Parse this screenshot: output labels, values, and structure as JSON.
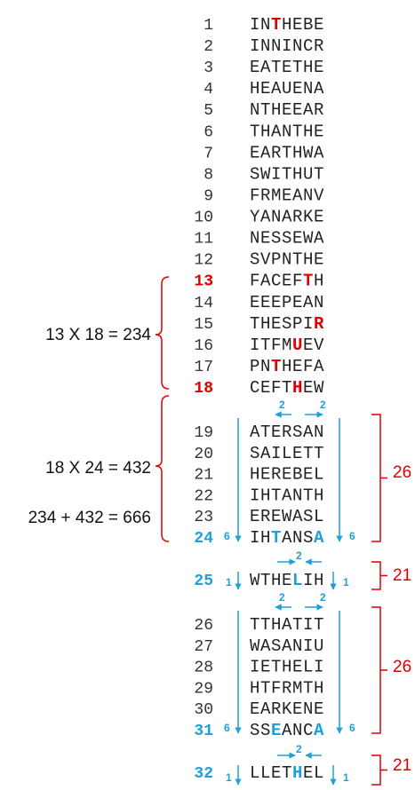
{
  "rows": [
    {
      "number": "1",
      "parts": [
        {
          "text": "IN"
        },
        {
          "text": "T",
          "color": "#e00000"
        },
        {
          "text": "HEBE"
        }
      ]
    },
    {
      "number": "2",
      "parts": [
        {
          "text": "INNINCR"
        }
      ]
    },
    {
      "number": "3",
      "parts": [
        {
          "text": "EATETHE"
        }
      ]
    },
    {
      "number": "4",
      "parts": [
        {
          "text": "HEAUENA"
        }
      ]
    },
    {
      "number": "5",
      "parts": [
        {
          "text": "NTHEEAR"
        }
      ]
    },
    {
      "number": "6",
      "parts": [
        {
          "text": "THANTHE"
        }
      ]
    },
    {
      "number": "7",
      "parts": [
        {
          "text": "EARTHWA"
        }
      ]
    },
    {
      "number": "8",
      "parts": [
        {
          "text": "SWITHUT"
        }
      ]
    },
    {
      "number": "9",
      "parts": [
        {
          "text": "FRMEANV"
        }
      ]
    },
    {
      "number": "10",
      "parts": [
        {
          "text": "YANARKE"
        }
      ]
    },
    {
      "number": "11",
      "parts": [
        {
          "text": "NESSEWA"
        }
      ]
    },
    {
      "number": "12",
      "parts": [
        {
          "text": "SVPNTHE"
        }
      ]
    },
    {
      "number": "13",
      "number_color": "#e00000",
      "parts": [
        {
          "text": "FACEF"
        },
        {
          "text": "T",
          "color": "#e00000"
        },
        {
          "text": "H"
        }
      ]
    },
    {
      "number": "14",
      "parts": [
        {
          "text": "EEEPEAN"
        }
      ]
    },
    {
      "number": "15",
      "parts": [
        {
          "text": "THESPI"
        },
        {
          "text": "R",
          "color": "#e00000"
        }
      ]
    },
    {
      "number": "16",
      "parts": [
        {
          "text": "ITFM"
        },
        {
          "text": "U",
          "color": "#e00000"
        },
        {
          "text": "EV"
        }
      ]
    },
    {
      "number": "17",
      "parts": [
        {
          "text": "PN"
        },
        {
          "text": "T",
          "color": "#e00000"
        },
        {
          "text": "HEFA"
        }
      ]
    },
    {
      "number": "18",
      "number_color": "#e00000",
      "parts": [
        {
          "text": "CEFT"
        },
        {
          "text": "H",
          "color": "#e00000"
        },
        {
          "text": "EW"
        }
      ]
    },
    {
      "number": "19",
      "parts": [
        {
          "text": "ATERSAN"
        }
      ]
    },
    {
      "number": "20",
      "parts": [
        {
          "text": "SAILETT"
        }
      ]
    },
    {
      "number": "21",
      "parts": [
        {
          "text": "HEREBEL"
        }
      ]
    },
    {
      "number": "22",
      "parts": [
        {
          "text": "IHTANTH"
        }
      ]
    },
    {
      "number": "23",
      "parts": [
        {
          "text": "EREWASL"
        }
      ]
    },
    {
      "number": "24",
      "number_color": "#1fa0d8",
      "parts": [
        {
          "text": "IH"
        },
        {
          "text": "T",
          "color": "#1fa0d8"
        },
        {
          "text": "ANS"
        },
        {
          "text": "A",
          "color": "#1fa0d8"
        }
      ]
    },
    {
      "number": "25",
      "number_color": "#1fa0d8",
      "parts": [
        {
          "text": "WTHE"
        },
        {
          "text": "L",
          "color": "#1fa0d8"
        },
        {
          "text": "IH"
        }
      ]
    },
    {
      "number": "26",
      "parts": [
        {
          "text": "TTHATIT"
        }
      ]
    },
    {
      "number": "27",
      "parts": [
        {
          "text": "WASANIU"
        }
      ]
    },
    {
      "number": "28",
      "parts": [
        {
          "text": "IETHELI"
        }
      ]
    },
    {
      "number": "29",
      "parts": [
        {
          "text": "HTFRMTH"
        }
      ]
    },
    {
      "number": "30",
      "parts": [
        {
          "text": "EARKENE"
        }
      ]
    },
    {
      "number": "31",
      "number_color": "#1fa0d8",
      "parts": [
        {
          "text": "SS"
        },
        {
          "text": "E",
          "color": "#1fa0d8"
        },
        {
          "text": "ANC"
        },
        {
          "text": "A",
          "color": "#1fa0d8"
        }
      ]
    },
    {
      "number": "32",
      "number_color": "#1fa0d8",
      "parts": [
        {
          "text": "LLET"
        },
        {
          "text": "H",
          "color": "#1fa0d8"
        },
        {
          "text": "EL"
        }
      ]
    }
  ],
  "left_brackets": [
    {
      "labels": [
        "13 X 18 = 234"
      ]
    },
    {
      "labels": [
        "18 X 24 = 432",
        "234 + 432 = 666"
      ]
    }
  ],
  "groups": [
    {
      "top_labels": [
        "2",
        "2"
      ],
      "side_labels": [
        "6",
        "6"
      ],
      "bracket_label": "26"
    },
    {
      "top_labels": [
        "2"
      ],
      "side_labels": [
        "1",
        "1"
      ],
      "bracket_label": "21"
    },
    {
      "top_labels": [
        "2",
        "2"
      ],
      "side_labels": [
        "6",
        "6"
      ],
      "bracket_label": "26"
    },
    {
      "top_labels": [
        "2"
      ],
      "side_labels": [
        "1",
        "1"
      ],
      "bracket_label": "21"
    }
  ]
}
